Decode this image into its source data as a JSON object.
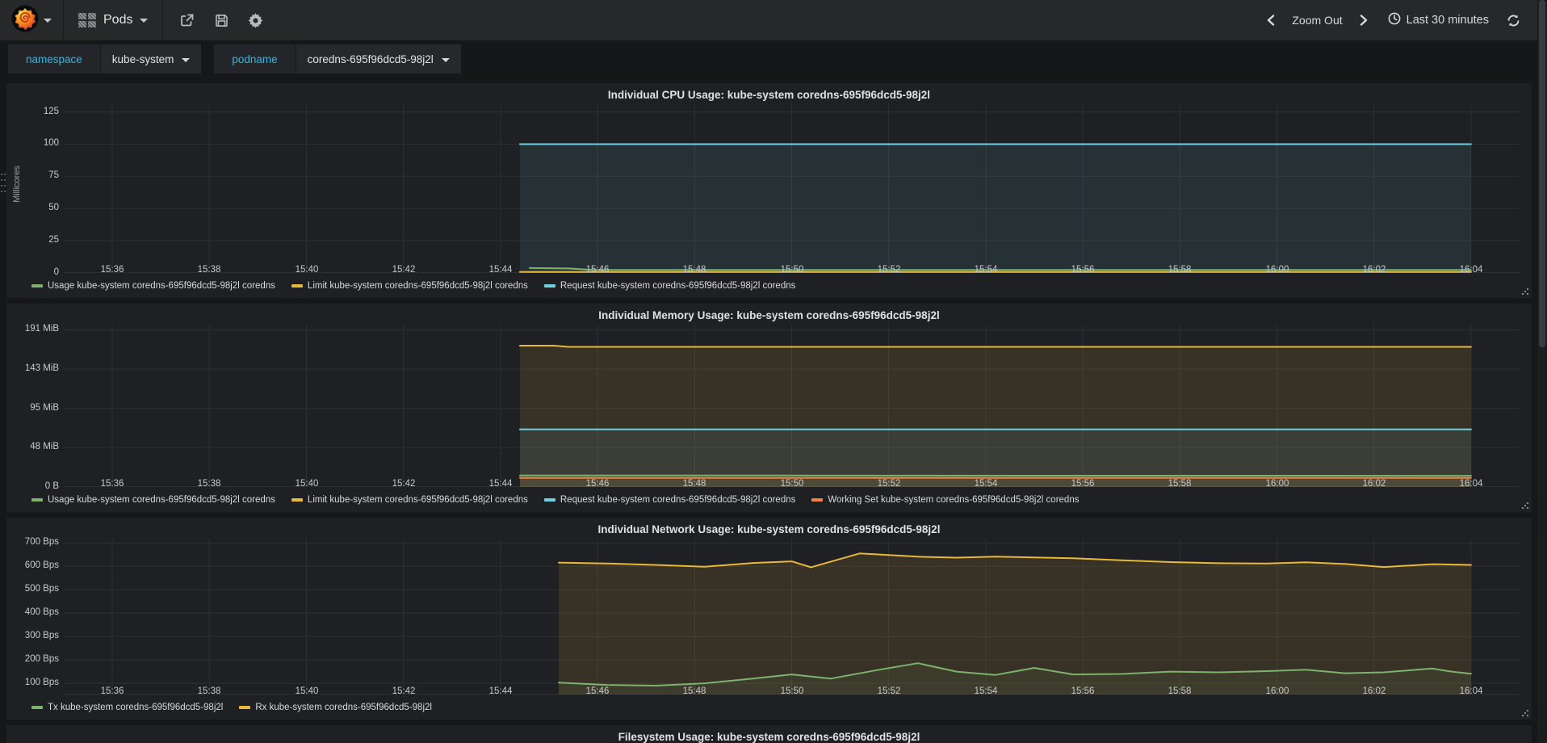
{
  "navbar": {
    "dashboard_name": "Pods",
    "zoom_out_label": "Zoom Out",
    "time_range_label": "Last 30 minutes",
    "icons": [
      "grafana-logo",
      "dashboard-grid",
      "share",
      "save",
      "settings-gear",
      "chevron-left",
      "chevron-right",
      "clock",
      "refresh"
    ]
  },
  "variables": [
    {
      "label": "namespace",
      "value": "kube-system"
    },
    {
      "label": "podname",
      "value": "coredns-695f96dcd5-98j2l"
    }
  ],
  "colors": {
    "green": "#7eb26d",
    "yellow": "#eab839",
    "cyan": "#6ed0e0",
    "orange": "#ef843c",
    "grid": "#2e2f33",
    "variable_label": "#33b5e5"
  },
  "chart_data": [
    {
      "type": "line",
      "title": "Individual CPU Usage: kube-system coredns-695f96dcd5-98j2l",
      "ylabel": "Millicores",
      "ylim": [
        0,
        131
      ],
      "xlim": [
        0,
        30
      ],
      "grid": true,
      "legend_position": "bottom",
      "yticks": [
        {
          "v": 0,
          "label": "0"
        },
        {
          "v": 25,
          "label": "25"
        },
        {
          "v": 50,
          "label": "50"
        },
        {
          "v": 75,
          "label": "75"
        },
        {
          "v": 100,
          "label": "100"
        },
        {
          "v": 125,
          "label": "125"
        }
      ],
      "xticks": [
        {
          "v": 1,
          "label": "15:36"
        },
        {
          "v": 3,
          "label": "15:38"
        },
        {
          "v": 5,
          "label": "15:40"
        },
        {
          "v": 7,
          "label": "15:42"
        },
        {
          "v": 9,
          "label": "15:44"
        },
        {
          "v": 11,
          "label": "15:46"
        },
        {
          "v": 13,
          "label": "15:48"
        },
        {
          "v": 15,
          "label": "15:50"
        },
        {
          "v": 17,
          "label": "15:52"
        },
        {
          "v": 19,
          "label": "15:54"
        },
        {
          "v": 21,
          "label": "15:56"
        },
        {
          "v": 23,
          "label": "15:58"
        },
        {
          "v": 25,
          "label": "16:00"
        },
        {
          "v": 27,
          "label": "16:02"
        },
        {
          "v": 29,
          "label": "16:04"
        }
      ],
      "series": [
        {
          "name": "Usage kube-system coredns-695f96dcd5-98j2l coredns",
          "color": "#7eb26d",
          "fill": 0.08,
          "points": [
            [
              9.6,
              3.8
            ],
            [
              10.4,
              3.5
            ],
            [
              10.9,
              2.4
            ],
            [
              13,
              2.3
            ],
            [
              16,
              2.4
            ],
            [
              20,
              2.3
            ],
            [
              24,
              2.4
            ],
            [
              29,
              2.3
            ]
          ]
        },
        {
          "name": "Limit kube-system coredns-695f96dcd5-98j2l coredns",
          "color": "#eab839",
          "fill": 0.0,
          "points": [
            [
              9.4,
              0.8
            ],
            [
              29,
              0.8
            ]
          ]
        },
        {
          "name": "Request kube-system coredns-695f96dcd5-98j2l coredns",
          "color": "#6ed0e0",
          "fill": 0.1,
          "points": [
            [
              9.4,
              100
            ],
            [
              29,
              100
            ]
          ]
        }
      ]
    },
    {
      "type": "line",
      "title": "Individual Memory Usage: kube-system coredns-695f96dcd5-98j2l",
      "ylabel": "",
      "ylim": [
        0,
        197
      ],
      "xlim": [
        0,
        30
      ],
      "grid": true,
      "legend_position": "bottom",
      "yticks": [
        {
          "v": 0,
          "label": "0 B"
        },
        {
          "v": 47.7,
          "label": "48 MiB"
        },
        {
          "v": 95.4,
          "label": "95 MiB"
        },
        {
          "v": 143.1,
          "label": "143 MiB"
        },
        {
          "v": 190.7,
          "label": "191 MiB"
        }
      ],
      "xticks": [
        {
          "v": 1,
          "label": "15:36"
        },
        {
          "v": 3,
          "label": "15:38"
        },
        {
          "v": 5,
          "label": "15:40"
        },
        {
          "v": 7,
          "label": "15:42"
        },
        {
          "v": 9,
          "label": "15:44"
        },
        {
          "v": 11,
          "label": "15:46"
        },
        {
          "v": 13,
          "label": "15:48"
        },
        {
          "v": 15,
          "label": "15:50"
        },
        {
          "v": 17,
          "label": "15:52"
        },
        {
          "v": 19,
          "label": "15:54"
        },
        {
          "v": 21,
          "label": "15:56"
        },
        {
          "v": 23,
          "label": "15:58"
        },
        {
          "v": 25,
          "label": "16:00"
        },
        {
          "v": 27,
          "label": "16:02"
        },
        {
          "v": 29,
          "label": "16:04"
        }
      ],
      "series": [
        {
          "name": "Usage kube-system coredns-695f96dcd5-98j2l coredns",
          "color": "#7eb26d",
          "fill": 0.08,
          "points": [
            [
              9.4,
              14
            ],
            [
              15,
              13.9
            ],
            [
              22,
              13.7
            ],
            [
              29,
              13.6
            ]
          ]
        },
        {
          "name": "Limit kube-system coredns-695f96dcd5-98j2l coredns",
          "color": "#eab839",
          "fill": 0.12,
          "points": [
            [
              9.4,
              171.5
            ],
            [
              10.1,
              171.5
            ],
            [
              10.4,
              170
            ],
            [
              29,
              170
            ]
          ]
        },
        {
          "name": "Request kube-system coredns-695f96dcd5-98j2l coredns",
          "color": "#6ed0e0",
          "fill": 0.08,
          "points": [
            [
              9.4,
              70
            ],
            [
              29,
              70
            ]
          ]
        },
        {
          "name": "Working Set kube-system coredns-695f96dcd5-98j2l coredns",
          "color": "#ef843c",
          "fill": 0.08,
          "points": [
            [
              9.4,
              11
            ],
            [
              29,
              11
            ]
          ]
        }
      ]
    },
    {
      "type": "line",
      "title": "Individual Network Usage: kube-system coredns-695f96dcd5-98j2l",
      "ylabel": "",
      "ylim": [
        52,
        718
      ],
      "xlim": [
        0,
        30
      ],
      "grid": true,
      "legend_position": "bottom",
      "yticks": [
        {
          "v": 100,
          "label": "100 Bps"
        },
        {
          "v": 200,
          "label": "200 Bps"
        },
        {
          "v": 300,
          "label": "300 Bps"
        },
        {
          "v": 400,
          "label": "400 Bps"
        },
        {
          "v": 500,
          "label": "500 Bps"
        },
        {
          "v": 600,
          "label": "600 Bps"
        },
        {
          "v": 700,
          "label": "700 Bps"
        }
      ],
      "xticks": [
        {
          "v": 1,
          "label": "15:36"
        },
        {
          "v": 3,
          "label": "15:38"
        },
        {
          "v": 5,
          "label": "15:40"
        },
        {
          "v": 7,
          "label": "15:42"
        },
        {
          "v": 9,
          "label": "15:44"
        },
        {
          "v": 11,
          "label": "15:46"
        },
        {
          "v": 13,
          "label": "15:48"
        },
        {
          "v": 15,
          "label": "15:50"
        },
        {
          "v": 17,
          "label": "15:52"
        },
        {
          "v": 19,
          "label": "15:54"
        },
        {
          "v": 21,
          "label": "15:56"
        },
        {
          "v": 23,
          "label": "15:58"
        },
        {
          "v": 25,
          "label": "16:00"
        },
        {
          "v": 27,
          "label": "16:02"
        },
        {
          "v": 29,
          "label": "16:04"
        }
      ],
      "series": [
        {
          "name": "Tx kube-system coredns-695f96dcd5-98j2l",
          "color": "#7eb26d",
          "fill": 0.08,
          "points": [
            [
              10.2,
              103
            ],
            [
              11.2,
              93
            ],
            [
              12.2,
              90
            ],
            [
              13.2,
              100
            ],
            [
              14.2,
              120
            ],
            [
              15,
              138
            ],
            [
              15.8,
              120
            ],
            [
              16.8,
              158
            ],
            [
              17.6,
              186
            ],
            [
              18.4,
              150
            ],
            [
              19.2,
              136
            ],
            [
              20,
              166
            ],
            [
              20.8,
              138
            ],
            [
              21.8,
              140
            ],
            [
              22.8,
              150
            ],
            [
              23.8,
              147
            ],
            [
              24.8,
              152
            ],
            [
              25.6,
              158
            ],
            [
              26.4,
              143
            ],
            [
              27.2,
              147
            ],
            [
              28.2,
              163
            ],
            [
              28.6,
              150
            ],
            [
              29,
              141
            ]
          ]
        },
        {
          "name": "Rx kube-system coredns-695f96dcd5-98j2l",
          "color": "#eab839",
          "fill": 0.12,
          "points": [
            [
              10.2,
              616
            ],
            [
              11.2,
              612
            ],
            [
              12.2,
              606
            ],
            [
              13.2,
              598
            ],
            [
              14.2,
              614
            ],
            [
              15,
              621
            ],
            [
              15.4,
              596
            ],
            [
              16.4,
              655
            ],
            [
              17.6,
              641
            ],
            [
              18.4,
              637
            ],
            [
              19.2,
              641
            ],
            [
              20,
              638
            ],
            [
              20.8,
              634
            ],
            [
              21.8,
              626
            ],
            [
              22.8,
              618
            ],
            [
              23.8,
              613
            ],
            [
              24.8,
              612
            ],
            [
              25.6,
              617
            ],
            [
              26.4,
              610
            ],
            [
              27.2,
              597
            ],
            [
              28.2,
              609
            ],
            [
              29,
              606
            ]
          ]
        }
      ]
    },
    {
      "type": "line",
      "title": "Filesystem Usage: kube-system coredns-695f96dcd5-98j2l",
      "note": "panel clipped at bottom of viewport",
      "series": []
    }
  ]
}
